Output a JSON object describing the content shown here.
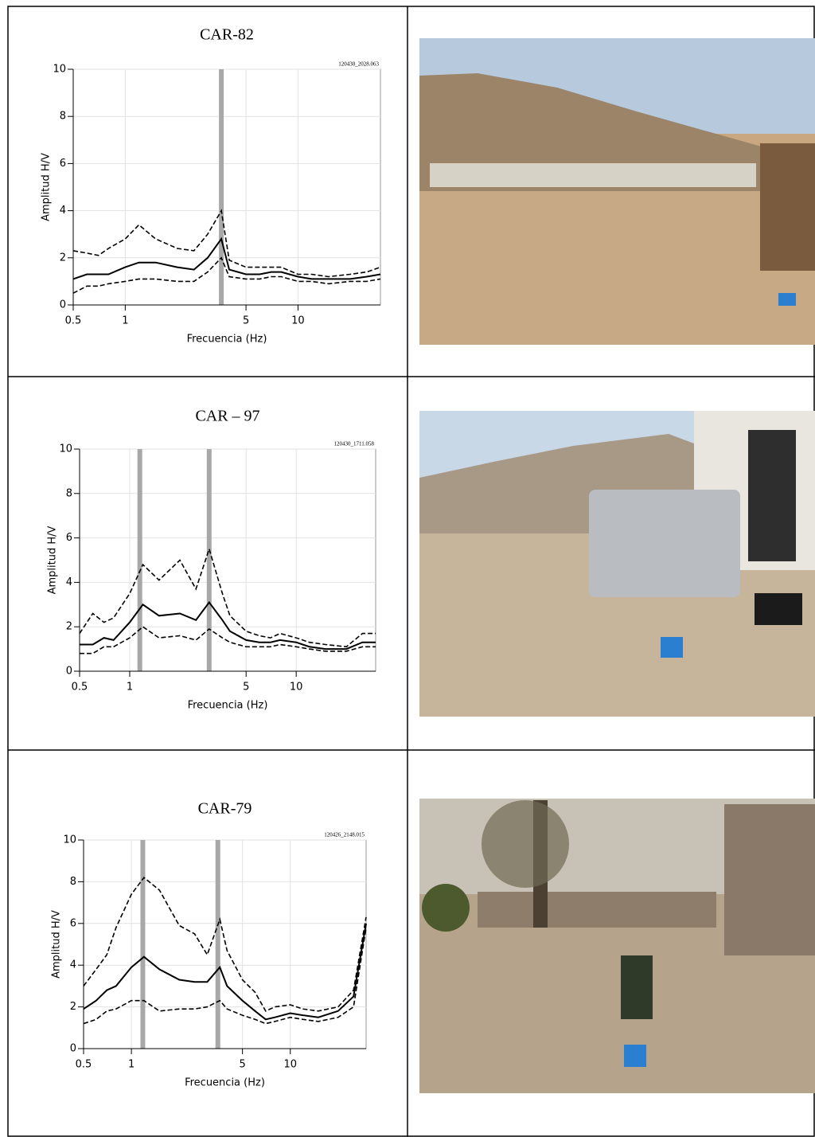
{
  "chart_data": [
    {
      "type": "line",
      "title": "CAR-82",
      "annotation": "120430_2028.063",
      "x_label": "Frecuencia (Hz)",
      "y_label": "Amplitud H/V",
      "x_log": true,
      "grid": true,
      "x": [
        0.5,
        0.6,
        0.7,
        0.8,
        1,
        1.2,
        1.5,
        2,
        2.5,
        3,
        3.6,
        4,
        5,
        6,
        7,
        8,
        10,
        12,
        15,
        20,
        25,
        30
      ],
      "xlim": [
        0.5,
        30
      ],
      "xticks": [
        0.5,
        1,
        5,
        10
      ],
      "ylim": [
        0,
        10
      ],
      "yticks": [
        0,
        2,
        4,
        6,
        8,
        10
      ],
      "peak_lines": [
        3.6
      ],
      "peak_color": "#a8a8a8",
      "series": [
        {
          "color": "#000000",
          "style": "solid",
          "values": [
            1.1,
            1.3,
            1.3,
            1.3,
            1.6,
            1.8,
            1.8,
            1.6,
            1.5,
            2.0,
            2.8,
            1.5,
            1.3,
            1.3,
            1.4,
            1.4,
            1.2,
            1.1,
            1.1,
            1.1,
            1.2,
            1.3
          ]
        },
        {
          "color": "#000000",
          "style": "dashed",
          "values": [
            2.3,
            2.2,
            2.1,
            2.4,
            2.8,
            3.4,
            2.8,
            2.4,
            2.3,
            3.0,
            4.0,
            1.9,
            1.6,
            1.6,
            1.6,
            1.6,
            1.3,
            1.3,
            1.2,
            1.3,
            1.4,
            1.6
          ]
        },
        {
          "color": "#000000",
          "style": "dashed",
          "values": [
            0.5,
            0.8,
            0.8,
            0.9,
            1.0,
            1.1,
            1.1,
            1.0,
            1.0,
            1.4,
            2.0,
            1.2,
            1.1,
            1.1,
            1.2,
            1.2,
            1.0,
            1.0,
            0.9,
            1.0,
            1.0,
            1.1
          ]
        }
      ]
    },
    {
      "type": "line",
      "title": "CAR – 97",
      "annotation": "120430_1711.058",
      "x_label": "Frecuencia (Hz)",
      "y_label": "Amplitud H/V",
      "x_log": true,
      "grid": true,
      "x": [
        0.5,
        0.6,
        0.7,
        0.8,
        1,
        1.2,
        1.5,
        2,
        2.5,
        3,
        3.6,
        4,
        5,
        6,
        7,
        8,
        10,
        12,
        15,
        20,
        25,
        30
      ],
      "xlim": [
        0.5,
        30
      ],
      "xticks": [
        0.5,
        1,
        5,
        10
      ],
      "ylim": [
        0,
        10
      ],
      "yticks": [
        0,
        2,
        4,
        6,
        8,
        10
      ],
      "peak_lines": [
        1.15,
        3.0
      ],
      "peak_color": "#a8a8a8",
      "series": [
        {
          "color": "#000000",
          "style": "solid",
          "values": [
            1.2,
            1.2,
            1.5,
            1.4,
            2.2,
            3.0,
            2.5,
            2.6,
            2.3,
            3.1,
            2.3,
            1.8,
            1.4,
            1.3,
            1.3,
            1.4,
            1.3,
            1.1,
            1.0,
            1.0,
            1.3,
            1.3
          ]
        },
        {
          "color": "#000000",
          "style": "dashed",
          "values": [
            1.7,
            2.6,
            2.2,
            2.4,
            3.5,
            4.8,
            4.1,
            5.0,
            3.7,
            5.5,
            3.5,
            2.5,
            1.8,
            1.6,
            1.5,
            1.7,
            1.5,
            1.3,
            1.2,
            1.1,
            1.7,
            1.7
          ]
        },
        {
          "color": "#000000",
          "style": "dashed",
          "values": [
            0.8,
            0.8,
            1.1,
            1.1,
            1.5,
            2.0,
            1.5,
            1.6,
            1.4,
            1.9,
            1.5,
            1.3,
            1.1,
            1.1,
            1.1,
            1.2,
            1.1,
            1.0,
            0.9,
            0.9,
            1.1,
            1.1
          ]
        }
      ]
    },
    {
      "type": "line",
      "title": "CAR-79",
      "annotation": "120426_2148.015",
      "x_label": "Frecuencia (Hz)",
      "y_label": "Amplitud H/V",
      "x_log": true,
      "grid": true,
      "x": [
        0.5,
        0.6,
        0.7,
        0.8,
        1,
        1.2,
        1.5,
        2,
        2.5,
        3,
        3.6,
        4,
        5,
        6,
        7,
        8,
        10,
        12,
        15,
        20,
        25,
        30
      ],
      "xlim": [
        0.5,
        30
      ],
      "xticks": [
        0.5,
        1,
        5,
        10
      ],
      "ylim": [
        0,
        10
      ],
      "yticks": [
        0,
        2,
        4,
        6,
        8,
        10
      ],
      "peak_lines": [
        1.18,
        3.5
      ],
      "peak_color": "#a8a8a8",
      "series": [
        {
          "color": "#000000",
          "style": "solid",
          "values": [
            1.9,
            2.3,
            2.8,
            3.0,
            3.9,
            4.4,
            3.8,
            3.3,
            3.2,
            3.2,
            3.9,
            3.0,
            2.3,
            1.8,
            1.4,
            1.5,
            1.7,
            1.6,
            1.5,
            1.8,
            2.5,
            6.0
          ]
        },
        {
          "color": "#000000",
          "style": "dashed",
          "values": [
            3.0,
            3.8,
            4.5,
            5.8,
            7.4,
            8.2,
            7.6,
            5.9,
            5.5,
            4.5,
            6.2,
            4.7,
            3.3,
            2.7,
            1.8,
            2.0,
            2.1,
            1.9,
            1.8,
            2.0,
            2.8,
            6.3
          ]
        },
        {
          "color": "#000000",
          "style": "dashed",
          "values": [
            1.2,
            1.4,
            1.8,
            1.9,
            2.3,
            2.3,
            1.8,
            1.9,
            1.9,
            2.0,
            2.3,
            1.9,
            1.6,
            1.4,
            1.2,
            1.3,
            1.5,
            1.4,
            1.3,
            1.5,
            2.0,
            5.8
          ]
        }
      ]
    }
  ]
}
